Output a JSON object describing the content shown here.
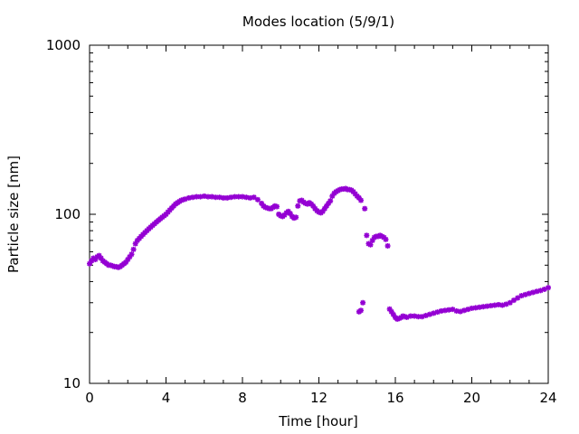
{
  "chart_data": {
    "type": "scatter",
    "title": "Modes location (5/9/1)",
    "xlabel": "Time [hour]",
    "ylabel": "Particle size [nm]",
    "xlim": [
      0,
      24
    ],
    "ylim": [
      10,
      1000
    ],
    "yscale": "log",
    "xticks": [
      0,
      4,
      8,
      12,
      16,
      20,
      24
    ],
    "yticks": [
      10,
      100,
      1000
    ],
    "xtick_labels": [
      "0",
      "4",
      "8",
      "12",
      "16",
      "20",
      "24"
    ],
    "ytick_labels": [
      "10",
      "100",
      "1000"
    ],
    "grid": false,
    "marker_color": "#9400d3",
    "series": [
      {
        "name": "",
        "points": [
          [
            0.0,
            51
          ],
          [
            0.1,
            53
          ],
          [
            0.2,
            55
          ],
          [
            0.3,
            54
          ],
          [
            0.4,
            56
          ],
          [
            0.5,
            57
          ],
          [
            0.6,
            55
          ],
          [
            0.7,
            53
          ],
          [
            0.8,
            52
          ],
          [
            0.9,
            51
          ],
          [
            1.0,
            50
          ],
          [
            1.1,
            50
          ],
          [
            1.2,
            49.5
          ],
          [
            1.3,
            49
          ],
          [
            1.4,
            49
          ],
          [
            1.5,
            48.5
          ],
          [
            1.6,
            49
          ],
          [
            1.7,
            50
          ],
          [
            1.8,
            51
          ],
          [
            1.9,
            52
          ],
          [
            2.0,
            54
          ],
          [
            2.1,
            56
          ],
          [
            2.2,
            58
          ],
          [
            2.3,
            62
          ],
          [
            2.4,
            67
          ],
          [
            2.5,
            70
          ],
          [
            2.6,
            72
          ],
          [
            2.7,
            74
          ],
          [
            2.8,
            76
          ],
          [
            2.9,
            78
          ],
          [
            3.0,
            80
          ],
          [
            3.1,
            82
          ],
          [
            3.2,
            84
          ],
          [
            3.3,
            86
          ],
          [
            3.4,
            88
          ],
          [
            3.5,
            90
          ],
          [
            3.6,
            92
          ],
          [
            3.7,
            94
          ],
          [
            3.8,
            96
          ],
          [
            3.9,
            98
          ],
          [
            4.0,
            100
          ],
          [
            4.1,
            103
          ],
          [
            4.2,
            106
          ],
          [
            4.3,
            109
          ],
          [
            4.4,
            112
          ],
          [
            4.5,
            115
          ],
          [
            4.6,
            117
          ],
          [
            4.7,
            119
          ],
          [
            4.8,
            121
          ],
          [
            4.9,
            122
          ],
          [
            5.0,
            123
          ],
          [
            5.2,
            125
          ],
          [
            5.4,
            126
          ],
          [
            5.6,
            127
          ],
          [
            5.8,
            127
          ],
          [
            6.0,
            128
          ],
          [
            6.2,
            127
          ],
          [
            6.4,
            127
          ],
          [
            6.6,
            126
          ],
          [
            6.8,
            126
          ],
          [
            7.0,
            125
          ],
          [
            7.2,
            125
          ],
          [
            7.4,
            126
          ],
          [
            7.6,
            127
          ],
          [
            7.8,
            127
          ],
          [
            8.0,
            127
          ],
          [
            8.2,
            126
          ],
          [
            8.4,
            125
          ],
          [
            8.6,
            126
          ],
          [
            8.8,
            122
          ],
          [
            9.0,
            116
          ],
          [
            9.1,
            112
          ],
          [
            9.2,
            110
          ],
          [
            9.3,
            109
          ],
          [
            9.4,
            108
          ],
          [
            9.5,
            108
          ],
          [
            9.6,
            110
          ],
          [
            9.7,
            112
          ],
          [
            9.8,
            111
          ],
          [
            9.9,
            100
          ],
          [
            10.0,
            98
          ],
          [
            10.1,
            97
          ],
          [
            10.2,
            99
          ],
          [
            10.3,
            102
          ],
          [
            10.4,
            104
          ],
          [
            10.5,
            101
          ],
          [
            10.6,
            97
          ],
          [
            10.7,
            95
          ],
          [
            10.8,
            96
          ],
          [
            10.9,
            112
          ],
          [
            11.0,
            120
          ],
          [
            11.1,
            121
          ],
          [
            11.2,
            118
          ],
          [
            11.3,
            116
          ],
          [
            11.4,
            115
          ],
          [
            11.5,
            117
          ],
          [
            11.6,
            115
          ],
          [
            11.7,
            112
          ],
          [
            11.8,
            108
          ],
          [
            11.9,
            105
          ],
          [
            12.0,
            103
          ],
          [
            12.1,
            102
          ],
          [
            12.2,
            104
          ],
          [
            12.3,
            108
          ],
          [
            12.4,
            112
          ],
          [
            12.5,
            116
          ],
          [
            12.6,
            120
          ],
          [
            12.7,
            128
          ],
          [
            12.8,
            133
          ],
          [
            12.9,
            136
          ],
          [
            13.0,
            138
          ],
          [
            13.1,
            140
          ],
          [
            13.2,
            141
          ],
          [
            13.3,
            141
          ],
          [
            13.4,
            142
          ],
          [
            13.5,
            140
          ],
          [
            13.6,
            140
          ],
          [
            13.7,
            139
          ],
          [
            13.8,
            136
          ],
          [
            13.9,
            132
          ],
          [
            14.0,
            128
          ],
          [
            14.1,
            125
          ],
          [
            14.2,
            121
          ],
          [
            14.4,
            108
          ],
          [
            14.5,
            75
          ],
          [
            14.6,
            67
          ],
          [
            14.7,
            66
          ],
          [
            14.8,
            70
          ],
          [
            14.9,
            73
          ],
          [
            15.0,
            74
          ],
          [
            15.1,
            74
          ],
          [
            15.2,
            75
          ],
          [
            15.3,
            74
          ],
          [
            15.4,
            73
          ],
          [
            15.5,
            71
          ],
          [
            15.6,
            65
          ],
          [
            14.1,
            26.5
          ],
          [
            14.2,
            27
          ],
          [
            14.3,
            30
          ],
          [
            15.7,
            27.5
          ],
          [
            15.8,
            26.5
          ],
          [
            15.9,
            25.5
          ],
          [
            16.0,
            24.5
          ],
          [
            16.1,
            24
          ],
          [
            16.2,
            24.2
          ],
          [
            16.3,
            24.5
          ],
          [
            16.4,
            25
          ],
          [
            16.5,
            24.8
          ],
          [
            16.6,
            24.6
          ],
          [
            16.8,
            25
          ],
          [
            17.0,
            25
          ],
          [
            17.2,
            24.8
          ],
          [
            17.4,
            24.8
          ],
          [
            17.6,
            25.2
          ],
          [
            17.8,
            25.6
          ],
          [
            18.0,
            26
          ],
          [
            18.2,
            26.4
          ],
          [
            18.4,
            26.8
          ],
          [
            18.6,
            27
          ],
          [
            18.8,
            27.2
          ],
          [
            19.0,
            27.4
          ],
          [
            19.2,
            26.8
          ],
          [
            19.4,
            26.6
          ],
          [
            19.6,
            27
          ],
          [
            19.8,
            27.4
          ],
          [
            20.0,
            27.8
          ],
          [
            20.2,
            28
          ],
          [
            20.4,
            28.2
          ],
          [
            20.6,
            28.4
          ],
          [
            20.8,
            28.6
          ],
          [
            21.0,
            28.8
          ],
          [
            21.2,
            29
          ],
          [
            21.4,
            29.2
          ],
          [
            21.6,
            29
          ],
          [
            21.8,
            29.4
          ],
          [
            22.0,
            30
          ],
          [
            22.2,
            31
          ],
          [
            22.4,
            32
          ],
          [
            22.6,
            33
          ],
          [
            22.8,
            33.5
          ],
          [
            23.0,
            34
          ],
          [
            23.2,
            34.5
          ],
          [
            23.4,
            35
          ],
          [
            23.6,
            35.4
          ],
          [
            23.8,
            36
          ],
          [
            24.0,
            36.8
          ]
        ]
      }
    ]
  }
}
